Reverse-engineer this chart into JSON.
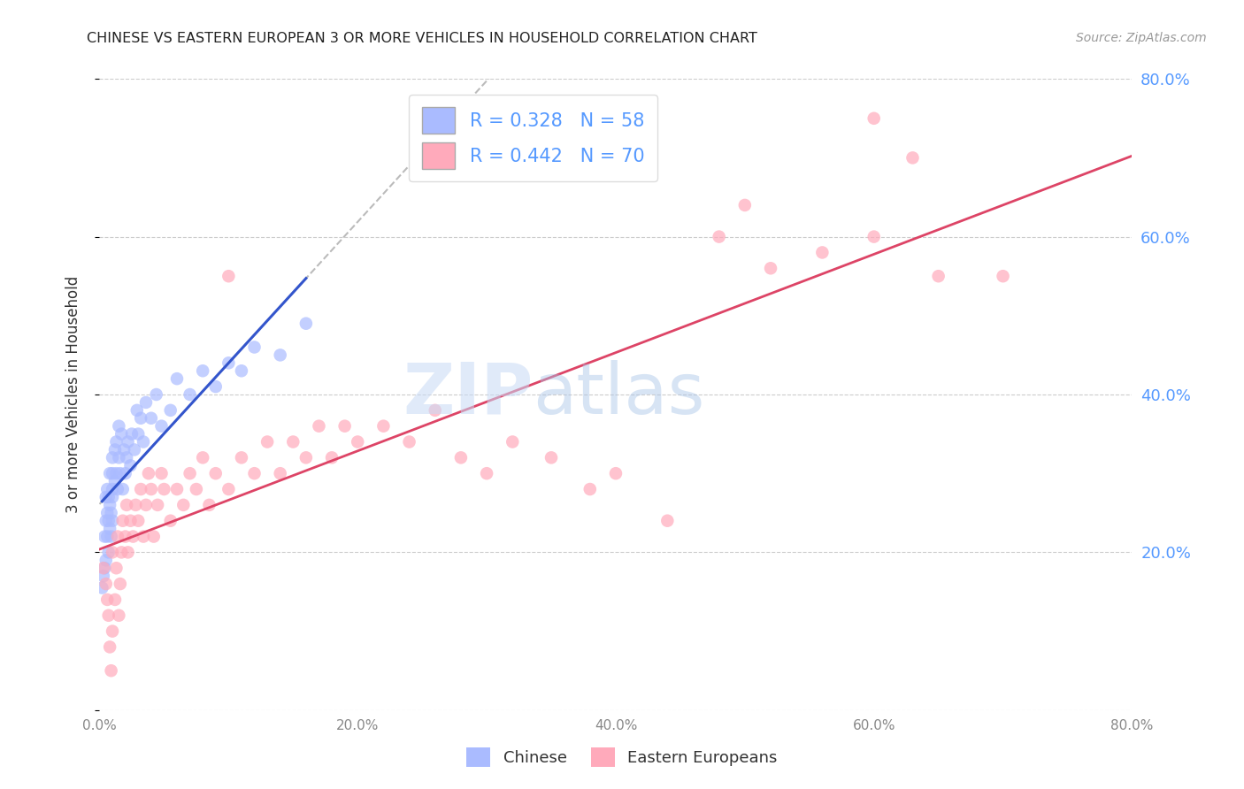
{
  "title": "CHINESE VS EASTERN EUROPEAN 3 OR MORE VEHICLES IN HOUSEHOLD CORRELATION CHART",
  "source": "Source: ZipAtlas.com",
  "ylabel": "3 or more Vehicles in Household",
  "xlim": [
    0.0,
    0.8
  ],
  "ylim": [
    0.0,
    0.8
  ],
  "yticks_right": [
    0.2,
    0.4,
    0.6,
    0.8
  ],
  "ytick_labels_right": [
    "20.0%",
    "40.0%",
    "60.0%",
    "80.0%"
  ],
  "xticks": [
    0.0,
    0.2,
    0.4,
    0.6,
    0.8
  ],
  "xtick_labels": [
    "0.0%",
    "20.0%",
    "40.0%",
    "60.0%",
    "80.0%"
  ],
  "title_color": "#222222",
  "source_color": "#999999",
  "right_tick_color": "#5599ff",
  "grid_color": "#cccccc",
  "chinese_color": "#aabbff",
  "eastern_color": "#ffaabb",
  "chinese_line_color": "#3355cc",
  "eastern_line_color": "#dd4466",
  "diagonal_color": "#bbbbbb",
  "legend_chinese_label": "R = 0.328   N = 58",
  "legend_eastern_label": "R = 0.442   N = 70",
  "chinese_R": 0.328,
  "chinese_N": 58,
  "eastern_R": 0.442,
  "eastern_N": 70,
  "watermark_zip": "ZIP",
  "watermark_atlas": "atlas",
  "cn_x": [
    0.002,
    0.003,
    0.004,
    0.004,
    0.005,
    0.005,
    0.005,
    0.006,
    0.006,
    0.006,
    0.007,
    0.007,
    0.007,
    0.008,
    0.008,
    0.008,
    0.009,
    0.009,
    0.01,
    0.01,
    0.01,
    0.01,
    0.01,
    0.012,
    0.012,
    0.013,
    0.013,
    0.014,
    0.015,
    0.015,
    0.016,
    0.017,
    0.018,
    0.019,
    0.02,
    0.021,
    0.022,
    0.024,
    0.025,
    0.027,
    0.029,
    0.03,
    0.032,
    0.034,
    0.036,
    0.04,
    0.044,
    0.048,
    0.055,
    0.06,
    0.07,
    0.08,
    0.09,
    0.1,
    0.11,
    0.12,
    0.14,
    0.16
  ],
  "cn_y": [
    0.155,
    0.17,
    0.18,
    0.22,
    0.19,
    0.24,
    0.27,
    0.22,
    0.25,
    0.28,
    0.2,
    0.24,
    0.27,
    0.23,
    0.26,
    0.3,
    0.22,
    0.25,
    0.24,
    0.28,
    0.3,
    0.32,
    0.27,
    0.29,
    0.33,
    0.3,
    0.34,
    0.28,
    0.32,
    0.36,
    0.3,
    0.35,
    0.28,
    0.33,
    0.3,
    0.32,
    0.34,
    0.31,
    0.35,
    0.33,
    0.38,
    0.35,
    0.37,
    0.34,
    0.39,
    0.37,
    0.4,
    0.36,
    0.38,
    0.42,
    0.4,
    0.43,
    0.41,
    0.44,
    0.43,
    0.46,
    0.45,
    0.49
  ],
  "ee_x": [
    0.003,
    0.005,
    0.006,
    0.007,
    0.008,
    0.009,
    0.01,
    0.01,
    0.012,
    0.013,
    0.014,
    0.015,
    0.016,
    0.017,
    0.018,
    0.02,
    0.021,
    0.022,
    0.024,
    0.026,
    0.028,
    0.03,
    0.032,
    0.034,
    0.036,
    0.038,
    0.04,
    0.042,
    0.045,
    0.048,
    0.05,
    0.055,
    0.06,
    0.065,
    0.07,
    0.075,
    0.08,
    0.085,
    0.09,
    0.1,
    0.11,
    0.12,
    0.13,
    0.14,
    0.15,
    0.16,
    0.17,
    0.18,
    0.19,
    0.2,
    0.22,
    0.24,
    0.26,
    0.28,
    0.3,
    0.32,
    0.35,
    0.38,
    0.4,
    0.44,
    0.48,
    0.52,
    0.56,
    0.6,
    0.65,
    0.5,
    0.63,
    0.7,
    0.6,
    0.1
  ],
  "ee_y": [
    0.18,
    0.16,
    0.14,
    0.12,
    0.08,
    0.05,
    0.1,
    0.2,
    0.14,
    0.18,
    0.22,
    0.12,
    0.16,
    0.2,
    0.24,
    0.22,
    0.26,
    0.2,
    0.24,
    0.22,
    0.26,
    0.24,
    0.28,
    0.22,
    0.26,
    0.3,
    0.28,
    0.22,
    0.26,
    0.3,
    0.28,
    0.24,
    0.28,
    0.26,
    0.3,
    0.28,
    0.32,
    0.26,
    0.3,
    0.28,
    0.32,
    0.3,
    0.34,
    0.3,
    0.34,
    0.32,
    0.36,
    0.32,
    0.36,
    0.34,
    0.36,
    0.34,
    0.38,
    0.32,
    0.3,
    0.34,
    0.32,
    0.28,
    0.3,
    0.24,
    0.6,
    0.56,
    0.58,
    0.6,
    0.55,
    0.64,
    0.7,
    0.55,
    0.75,
    0.55
  ]
}
